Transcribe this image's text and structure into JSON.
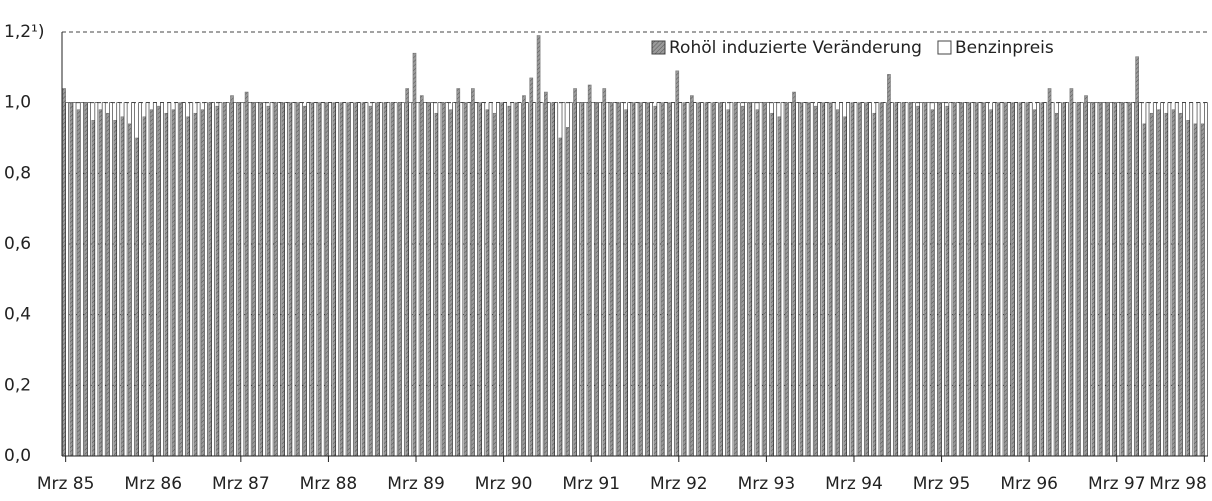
{
  "chart_data": {
    "type": "bar",
    "categories": [
      "Mrz 85",
      null,
      null,
      null,
      null,
      null,
      null,
      null,
      null,
      null,
      null,
      null,
      "Mrz 86",
      null,
      null,
      null,
      null,
      null,
      null,
      null,
      null,
      null,
      null,
      null,
      "Mrz 87",
      null,
      null,
      null,
      null,
      null,
      null,
      null,
      null,
      null,
      null,
      null,
      "Mrz 88",
      null,
      null,
      null,
      null,
      null,
      null,
      null,
      null,
      null,
      null,
      null,
      "Mrz 89",
      null,
      null,
      null,
      null,
      null,
      null,
      null,
      null,
      null,
      null,
      null,
      "Mrz 90",
      null,
      null,
      null,
      null,
      null,
      null,
      null,
      null,
      null,
      null,
      null,
      "Mrz 91",
      null,
      null,
      null,
      null,
      null,
      null,
      null,
      null,
      null,
      null,
      null,
      "Mrz 92",
      null,
      null,
      null,
      null,
      null,
      null,
      null,
      null,
      null,
      null,
      null,
      "Mrz 93",
      null,
      null,
      null,
      null,
      null,
      null,
      null,
      null,
      null,
      null,
      null,
      "Mrz 94",
      null,
      null,
      null,
      null,
      null,
      null,
      null,
      null,
      null,
      null,
      null,
      "Mrz 95",
      null,
      null,
      null,
      null,
      null,
      null,
      null,
      null,
      null,
      null,
      null,
      "Mrz 96",
      null,
      null,
      null,
      null,
      null,
      null,
      null,
      null,
      null,
      null,
      null,
      "Mrz 97",
      null,
      null,
      null,
      null,
      null,
      null,
      null,
      null,
      null,
      null,
      null,
      "Mrz 98"
    ],
    "series": [
      {
        "name": "Rohöl induzierte Veränderung",
        "color": "#8a8a8a",
        "values": [
          1.04,
          1.0,
          0.98,
          1.0,
          0.95,
          0.98,
          0.97,
          0.95,
          0.96,
          0.94,
          0.9,
          0.96,
          0.98,
          0.99,
          0.97,
          0.98,
          1.0,
          0.96,
          0.97,
          0.98,
          1.0,
          0.99,
          1.0,
          1.02,
          1.0,
          1.03,
          1.0,
          1.0,
          0.99,
          1.0,
          1.0,
          1.0,
          1.0,
          0.99,
          1.0,
          1.0,
          1.0,
          1.0,
          1.0,
          1.0,
          1.0,
          1.0,
          0.99,
          1.0,
          1.0,
          1.0,
          1.0,
          1.04,
          1.14,
          1.02,
          1.0,
          0.97,
          1.0,
          0.98,
          1.04,
          1.0,
          1.04,
          1.0,
          0.98,
          0.97,
          1.0,
          0.99,
          1.0,
          1.02,
          1.07,
          1.19,
          1.03,
          1.0,
          0.9,
          0.93,
          1.04,
          1.0,
          1.05,
          1.0,
          1.04,
          1.0,
          1.0,
          0.98,
          1.0,
          1.0,
          1.0,
          0.99,
          1.0,
          1.0,
          1.09,
          1.0,
          1.02,
          1.0,
          1.0,
          1.0,
          1.0,
          0.98,
          1.0,
          0.99,
          1.0,
          0.98,
          1.0,
          0.97,
          0.96,
          1.0,
          1.03,
          1.0,
          1.0,
          0.99,
          1.0,
          1.0,
          0.98,
          0.96,
          1.0,
          1.0,
          1.0,
          0.97,
          1.0,
          1.08,
          1.0,
          1.0,
          1.0,
          0.99,
          1.0,
          0.98,
          1.0,
          0.99,
          1.0,
          1.0,
          1.0,
          1.0,
          1.0,
          0.98,
          1.0,
          1.0,
          1.0,
          1.0,
          1.0,
          0.98,
          1.0,
          1.04,
          0.97,
          1.0,
          1.04,
          1.0,
          1.02,
          1.0,
          1.0,
          1.0,
          1.0,
          1.0,
          1.0,
          1.13,
          0.94,
          0.97,
          0.98,
          0.97,
          0.98,
          0.97,
          0.95,
          0.94,
          0.94
        ]
      },
      {
        "name": "Benzinpreis",
        "color": "#ffffff",
        "values": [
          1,
          1,
          1,
          1,
          1,
          1,
          1,
          1,
          1,
          1,
          1,
          1,
          1,
          1,
          1,
          1,
          1,
          1,
          1,
          1,
          1,
          1,
          1,
          1,
          1,
          1,
          1,
          1,
          1,
          1,
          1,
          1,
          1,
          1,
          1,
          1,
          1,
          1,
          1,
          1,
          1,
          1,
          1,
          1,
          1,
          1,
          1,
          1,
          1,
          1,
          1,
          1,
          1,
          1,
          1,
          1,
          1,
          1,
          1,
          1,
          1,
          1,
          1,
          1,
          1,
          1,
          1,
          1,
          1,
          1,
          1,
          1,
          1,
          1,
          1,
          1,
          1,
          1,
          1,
          1,
          1,
          1,
          1,
          1,
          1,
          1,
          1,
          1,
          1,
          1,
          1,
          1,
          1,
          1,
          1,
          1,
          1,
          1,
          1,
          1,
          1,
          1,
          1,
          1,
          1,
          1,
          1,
          1,
          1,
          1,
          1,
          1,
          1,
          1,
          1,
          1,
          1,
          1,
          1,
          1,
          1,
          1,
          1,
          1,
          1,
          1,
          1,
          1,
          1,
          1,
          1,
          1,
          1,
          1,
          1,
          1,
          1,
          1,
          1,
          1,
          1,
          1,
          1,
          1,
          1,
          1,
          1,
          1,
          1,
          1,
          1,
          1,
          1,
          1,
          1,
          1,
          1
        ]
      }
    ],
    "ylim": [
      0,
      1.2
    ],
    "yticks": [
      {
        "value": 0,
        "label": "0,0"
      },
      {
        "value": 0.2,
        "label": "0,2"
      },
      {
        "value": 0.4,
        "label": "0,4"
      },
      {
        "value": 0.6,
        "label": "0,6"
      },
      {
        "value": 0.8,
        "label": "0,8"
      },
      {
        "value": 1.0,
        "label": "1,0"
      },
      {
        "value": 1.2,
        "label": "1,2¹)"
      }
    ],
    "grid": true,
    "legend": "top-right"
  }
}
